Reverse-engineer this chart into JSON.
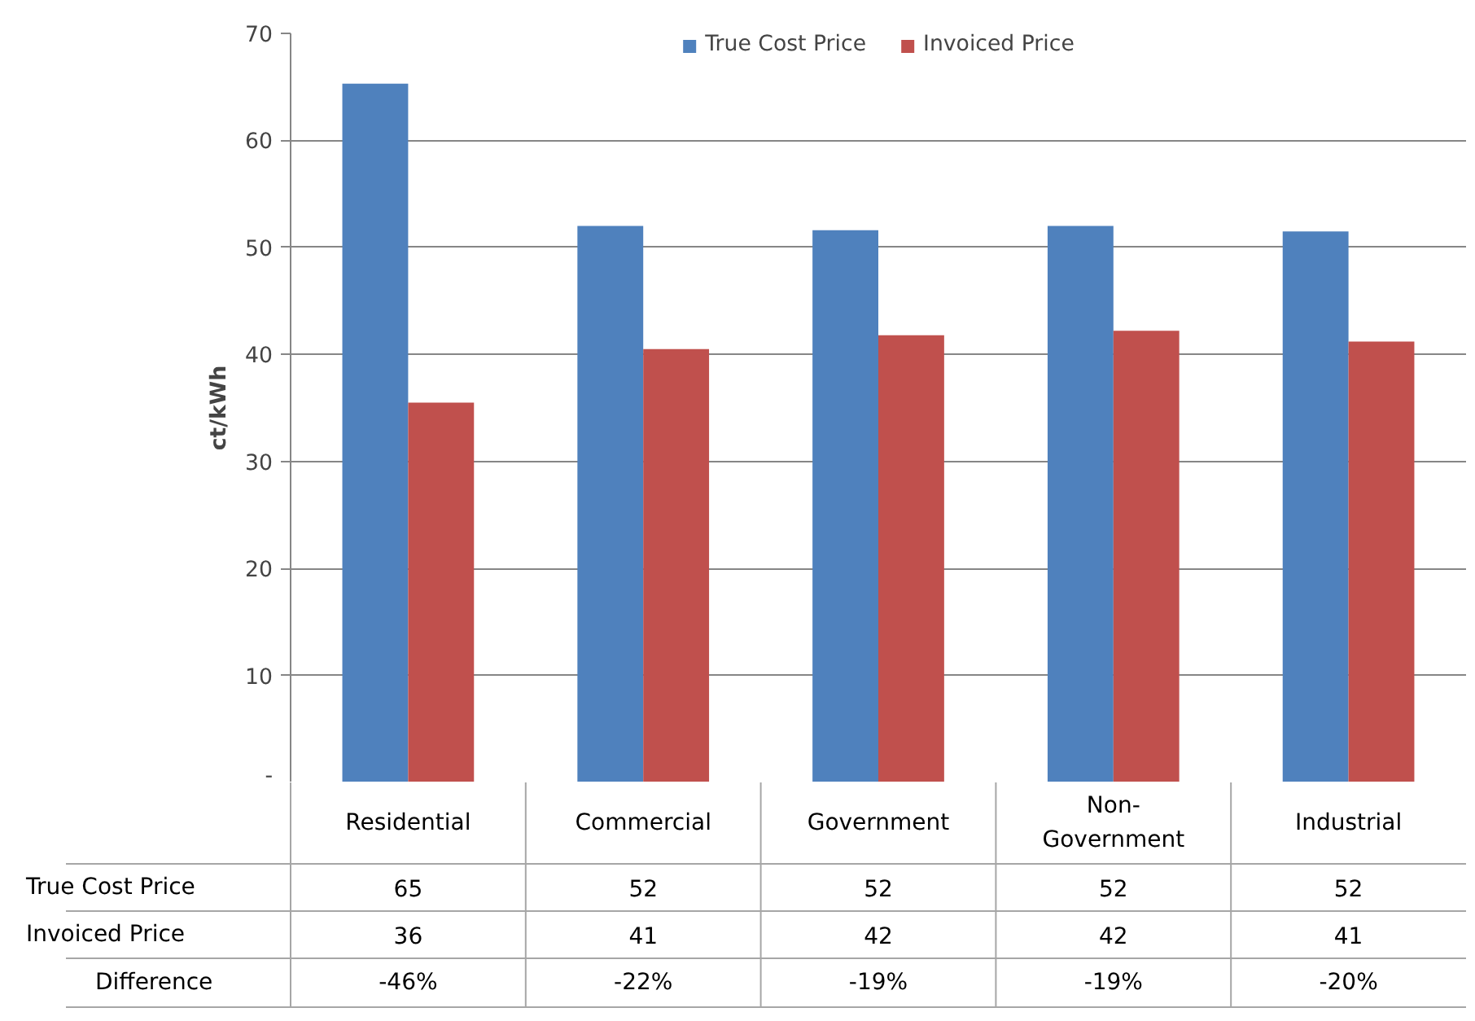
{
  "chart_data": {
    "type": "bar",
    "ylabel": "ct/kWh",
    "categories": [
      "Residential",
      "Commercial",
      "Government",
      "Non-Government",
      "Industrial"
    ],
    "series": [
      {
        "name": "True Cost Price",
        "color": "#4f81bd",
        "values": [
          65.3,
          52.0,
          51.6,
          52.0,
          51.5
        ],
        "value_labels": [
          "65",
          "52",
          "52",
          "52",
          "52"
        ]
      },
      {
        "name": "Invoiced Price",
        "color": "#c0504d",
        "values": [
          35.5,
          40.5,
          41.8,
          42.2,
          41.2
        ],
        "value_labels": [
          "36",
          "41",
          "42",
          "42",
          "41"
        ]
      }
    ],
    "ylim": [
      0,
      70
    ],
    "yticks": [
      {
        "value": 0,
        "label": "-"
      },
      10,
      20,
      30,
      40,
      50,
      60,
      70
    ],
    "grid": "y",
    "legend": "top",
    "annotations": [
      "Difference",
      "-46%",
      "-22%",
      "-19%",
      "-19%",
      "-20%"
    ]
  }
}
